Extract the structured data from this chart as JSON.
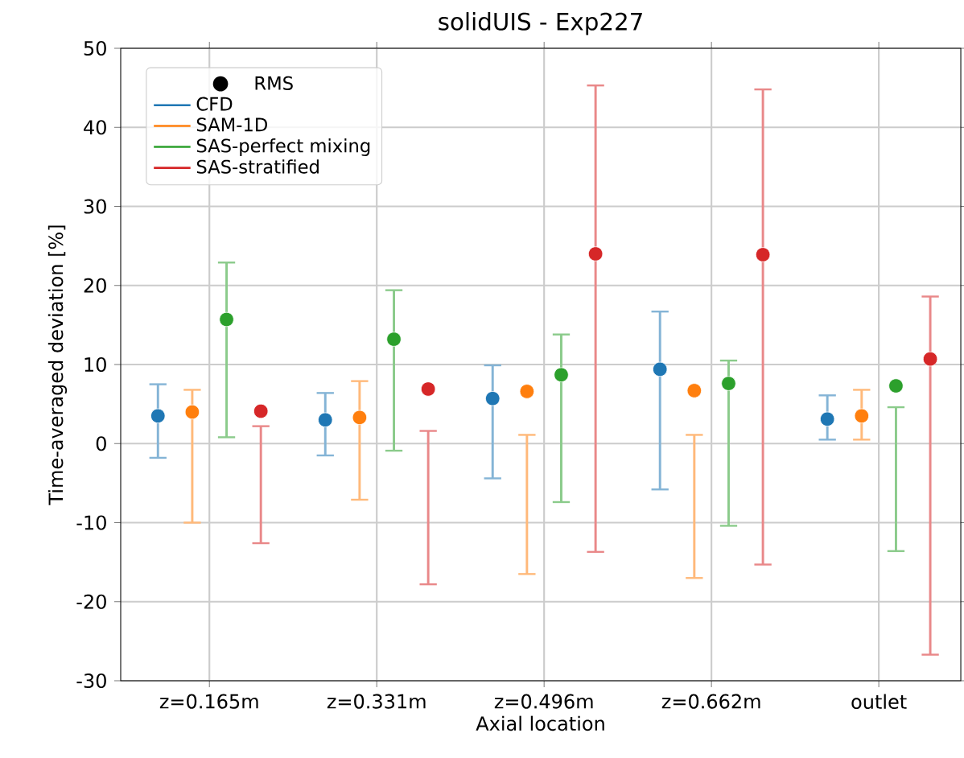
{
  "chart_data": {
    "type": "scatter",
    "title": "solidUIS - Exp227",
    "xlabel": "Axial location",
    "ylabel": "Time-averaged deviation [%]",
    "legend_title": "RMS",
    "categories": [
      "z=0.165m",
      "z=0.331m",
      "z=0.496m",
      "z=0.662m",
      "outlet"
    ],
    "series": [
      {
        "name": "CFD",
        "color": "#1f77b4",
        "values": [
          3.5,
          3.0,
          5.7,
          9.4,
          3.1
        ],
        "errors": [
          [
            -1.8,
            7.5
          ],
          [
            -1.5,
            6.4
          ],
          [
            -4.4,
            9.9
          ],
          [
            -5.8,
            16.7
          ],
          [
            0.5,
            6.1
          ]
        ]
      },
      {
        "name": "SAM-1D",
        "color": "#ff7f0e",
        "values": [
          4.0,
          3.3,
          6.6,
          6.7,
          3.5
        ],
        "errors": [
          [
            -10,
            6.8
          ],
          [
            -7.1,
            7.9
          ],
          [
            -16.5,
            1.1
          ],
          [
            -17.0,
            1.1
          ],
          [
            0.5,
            6.8
          ]
        ]
      },
      {
        "name": "SAS-perfect mixing",
        "color": "#2ca02c",
        "values": [
          15.7,
          13.2,
          8.7,
          7.6,
          7.3
        ],
        "errors": [
          [
            0.8,
            22.9
          ],
          [
            -0.9,
            19.4
          ],
          [
            -7.4,
            13.8
          ],
          [
            -10.4,
            10.5
          ],
          [
            -13.6,
            4.6
          ]
        ]
      },
      {
        "name": "SAS-stratified",
        "color": "#d62728",
        "values": [
          4.1,
          6.9,
          24.0,
          23.9,
          10.7
        ],
        "errors": [
          [
            -12.6,
            2.2
          ],
          [
            -17.8,
            1.6
          ],
          [
            -13.7,
            45.3
          ],
          [
            -15.3,
            44.8
          ],
          [
            -26.7,
            18.6
          ]
        ]
      }
    ],
    "ylim": [
      -30,
      50
    ],
    "yticks": [
      -30,
      -20,
      -10,
      0,
      10,
      20,
      30,
      40,
      50
    ],
    "grid": true,
    "legend": "top left",
    "marker": "circle"
  }
}
